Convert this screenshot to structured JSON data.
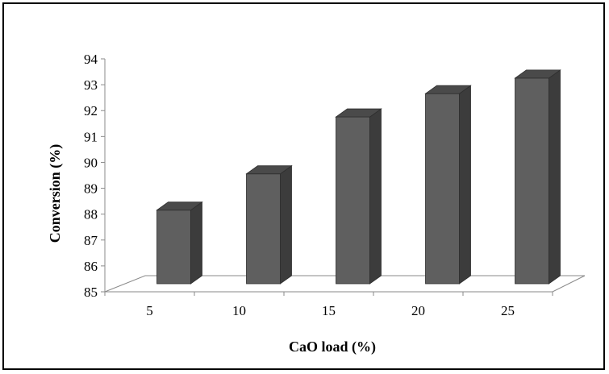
{
  "chart_data": {
    "type": "bar",
    "style": "3d-column",
    "title": "",
    "xlabel": "CaO load (%)",
    "ylabel": "Conversion (%)",
    "categories": [
      "5",
      "10",
      "15",
      "20",
      "25"
    ],
    "values": [
      88.0,
      89.4,
      91.6,
      92.5,
      93.1
    ],
    "ylim": [
      85,
      94
    ],
    "yticks": [
      85,
      86,
      87,
      88,
      89,
      90,
      91,
      92,
      93,
      94
    ],
    "grid": false,
    "legend": "none",
    "bar_color": "#5f5f5f",
    "bar_side_color": "#3c3c3c",
    "bar_top_color": "#4a4a4a"
  }
}
